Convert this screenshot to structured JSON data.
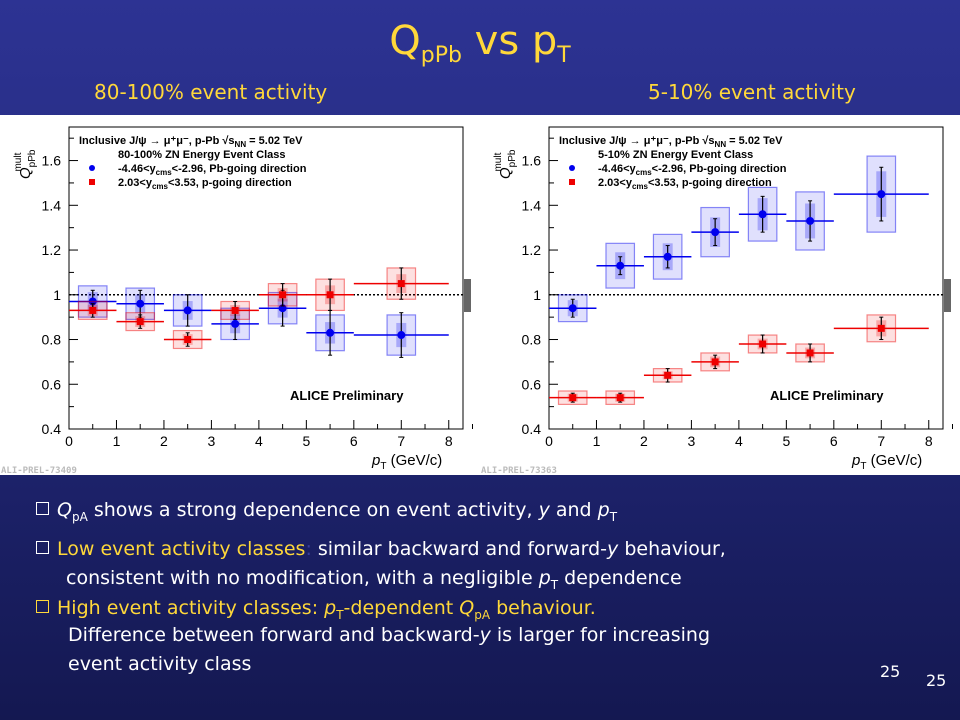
{
  "slide": {
    "title_main": "Q",
    "title_sub1": "pPb",
    "title_mid": " vs p",
    "title_sub2": "T",
    "subtitle_left": "80-100% event activity",
    "subtitle_right": "5-10% event activity",
    "page_number_1": "25",
    "page_number_2": "25"
  },
  "bullets": {
    "b1": {
      "q": "Q",
      "qsub": "pA",
      "text": " shows a strong dependence on event activity, ",
      "y": "y",
      "and": " and ",
      "p": "p",
      "psub": "T"
    },
    "b2": {
      "head": "Low event activity classes",
      "colon": ":",
      "text": " similar backward and forward-",
      "y": "y",
      "text2": " behaviour,",
      "line2a": "consistent with no modification, with a negligible ",
      "line2p": "p",
      "line2psub": "T",
      "line2b": " dependence"
    },
    "b3": {
      "head1": "High event activity classes: ",
      "p": "p",
      "psub": "T",
      "head2": "-dependent ",
      "q": "Q",
      "qsub": "pA",
      "head3": " behaviour.",
      "line2a": "Difference between forward and backward-",
      "line2y": "y",
      "line2b": " is larger for increasing",
      "line3": "event activity class"
    }
  },
  "chart_data": [
    {
      "type": "scatter",
      "ylabel_main": "Q",
      "ylabel_sub": "pPb",
      "ylabel_sup": "mult",
      "xlabel_main": "p",
      "xlabel_sub": "T",
      "xlabel_unit": " (GeV/c)",
      "xlim": [
        0,
        8.3
      ],
      "ylim": [
        0.4,
        1.75
      ],
      "x_ticks": [
        "0",
        "1",
        "2",
        "3",
        "4",
        "5",
        "6",
        "7",
        "8"
      ],
      "y_ticks": [
        "0.4",
        "0.6",
        "0.8",
        "1",
        "1.2",
        "1.4",
        "1.6"
      ],
      "legend": {
        "line1a": "Inclusive J/ψ → μ⁺μ⁻, p-Pb ",
        "line1b": "√s",
        "line1sub": "NN",
        "line1c": " = 5.02 TeV",
        "line2": "80-100% ZN Energy Event Class",
        "series_labels": [
          {
            "a": "-4.46<y",
            "sub": "cms",
            "b": "<-2.96, Pb-going direction"
          },
          {
            "a": "2.03<y",
            "sub": "cms",
            "b": "<3.53, p-going direction"
          }
        ]
      },
      "annotation": "ALICE Preliminary",
      "figure_id": "ALI-PREL-73409",
      "reference_line": 1,
      "series": [
        {
          "color": "#0000ee",
          "marker": "circle",
          "points": [
            {
              "x": 0.5,
              "y": 0.97,
              "xl": 0,
              "xh": 1,
              "e": 0.05,
              "s": 0.07
            },
            {
              "x": 1.5,
              "y": 0.96,
              "xl": 1,
              "xh": 2,
              "e": 0.06,
              "s": 0.07
            },
            {
              "x": 2.5,
              "y": 0.93,
              "xl": 2,
              "xh": 3,
              "e": 0.07,
              "s": 0.07
            },
            {
              "x": 3.5,
              "y": 0.87,
              "xl": 3,
              "xh": 4,
              "e": 0.07,
              "s": 0.07
            },
            {
              "x": 4.5,
              "y": 0.94,
              "xl": 4,
              "xh": 5,
              "e": 0.08,
              "s": 0.07
            },
            {
              "x": 5.5,
              "y": 0.83,
              "xl": 5,
              "xh": 6,
              "e": 0.1,
              "s": 0.08
            },
            {
              "x": 7.0,
              "y": 0.82,
              "xl": 6,
              "xh": 8,
              "e": 0.1,
              "s": 0.09
            }
          ]
        },
        {
          "color": "#ee0000",
          "marker": "square",
          "points": [
            {
              "x": 0.5,
              "y": 0.93,
              "xl": 0,
              "xh": 1,
              "e": 0.03,
              "s": 0.04
            },
            {
              "x": 1.5,
              "y": 0.88,
              "xl": 1,
              "xh": 2,
              "e": 0.03,
              "s": 0.04
            },
            {
              "x": 2.5,
              "y": 0.8,
              "xl": 2,
              "xh": 3,
              "e": 0.03,
              "s": 0.04
            },
            {
              "x": 3.5,
              "y": 0.93,
              "xl": 3,
              "xh": 4,
              "e": 0.04,
              "s": 0.04
            },
            {
              "x": 4.5,
              "y": 1.0,
              "xl": 4,
              "xh": 5,
              "e": 0.05,
              "s": 0.05
            },
            {
              "x": 5.5,
              "y": 1.0,
              "xl": 5,
              "xh": 6,
              "e": 0.07,
              "s": 0.07
            },
            {
              "x": 7.0,
              "y": 1.05,
              "xl": 6,
              "xh": 8,
              "e": 0.07,
              "s": 0.07
            }
          ]
        }
      ]
    },
    {
      "type": "scatter",
      "ylabel_main": "Q",
      "ylabel_sub": "pPb",
      "ylabel_sup": "mult",
      "xlabel_main": "p",
      "xlabel_sub": "T",
      "xlabel_unit": " (GeV/c)",
      "xlim": [
        0,
        8.3
      ],
      "ylim": [
        0.4,
        1.75
      ],
      "x_ticks": [
        "0",
        "1",
        "2",
        "3",
        "4",
        "5",
        "6",
        "7",
        "8"
      ],
      "y_ticks": [
        "0.4",
        "0.6",
        "0.8",
        "1",
        "1.2",
        "1.4",
        "1.6"
      ],
      "legend": {
        "line1a": "Inclusive J/ψ → μ⁺μ⁻, p-Pb ",
        "line1b": "√s",
        "line1sub": "NN",
        "line1c": " = 5.02 TeV",
        "line2": "5-10% ZN Energy Event Class",
        "series_labels": [
          {
            "a": "-4.46<y",
            "sub": "cms",
            "b": "<-2.96, Pb-going direction"
          },
          {
            "a": "2.03<y",
            "sub": "cms",
            "b": "<3.53, p-going direction"
          }
        ]
      },
      "annotation": "ALICE Preliminary",
      "figure_id": "ALI-PREL-73363",
      "reference_line": 1,
      "series": [
        {
          "color": "#0000ee",
          "marker": "circle",
          "points": [
            {
              "x": 0.5,
              "y": 0.94,
              "xl": 0,
              "xh": 1,
              "e": 0.04,
              "s": 0.06
            },
            {
              "x": 1.5,
              "y": 1.13,
              "xl": 1,
              "xh": 2,
              "e": 0.04,
              "s": 0.1
            },
            {
              "x": 2.5,
              "y": 1.17,
              "xl": 2,
              "xh": 3,
              "e": 0.05,
              "s": 0.1
            },
            {
              "x": 3.5,
              "y": 1.28,
              "xl": 3,
              "xh": 4,
              "e": 0.06,
              "s": 0.11
            },
            {
              "x": 4.5,
              "y": 1.36,
              "xl": 4,
              "xh": 5,
              "e": 0.08,
              "s": 0.12
            },
            {
              "x": 5.5,
              "y": 1.33,
              "xl": 5,
              "xh": 6,
              "e": 0.09,
              "s": 0.13
            },
            {
              "x": 7.0,
              "y": 1.45,
              "xl": 6,
              "xh": 8,
              "e": 0.12,
              "s": 0.17
            }
          ]
        },
        {
          "color": "#ee0000",
          "marker": "square",
          "points": [
            {
              "x": 0.5,
              "y": 0.54,
              "xl": 0,
              "xh": 1,
              "e": 0.02,
              "s": 0.03
            },
            {
              "x": 1.5,
              "y": 0.54,
              "xl": 1,
              "xh": 2,
              "e": 0.02,
              "s": 0.03
            },
            {
              "x": 2.5,
              "y": 0.64,
              "xl": 2,
              "xh": 3,
              "e": 0.03,
              "s": 0.03
            },
            {
              "x": 3.5,
              "y": 0.7,
              "xl": 3,
              "xh": 4,
              "e": 0.03,
              "s": 0.04
            },
            {
              "x": 4.5,
              "y": 0.78,
              "xl": 4,
              "xh": 5,
              "e": 0.04,
              "s": 0.04
            },
            {
              "x": 5.5,
              "y": 0.74,
              "xl": 5,
              "xh": 6,
              "e": 0.04,
              "s": 0.04
            },
            {
              "x": 7.0,
              "y": 0.85,
              "xl": 6,
              "xh": 8,
              "e": 0.05,
              "s": 0.06
            }
          ]
        }
      ]
    }
  ]
}
